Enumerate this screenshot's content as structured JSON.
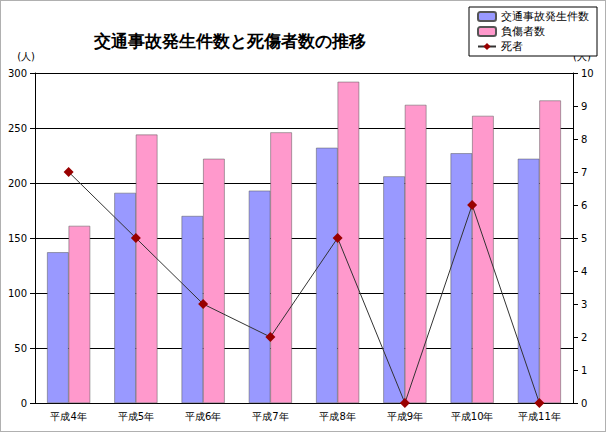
{
  "chart_data": {
    "type": "bar",
    "title": "交通事故発生件数と死傷者数の推移",
    "categories": [
      "平成4年",
      "平成5年",
      "平成6年",
      "平成7年",
      "平成8年",
      "平成9年",
      "平成10年",
      "平成11年"
    ],
    "series": [
      {
        "name": "交通事故発生件数",
        "type": "bar",
        "color": "#9999ff",
        "values": [
          137,
          191,
          170,
          193,
          232,
          206,
          227,
          222
        ]
      },
      {
        "name": "負傷者数",
        "type": "bar",
        "color": "#ff99cc",
        "values": [
          161,
          244,
          222,
          246,
          292,
          271,
          261,
          275
        ]
      },
      {
        "name": "死者",
        "type": "line",
        "axis": "y2",
        "color": "#990000",
        "marker": "diamond",
        "values": [
          7,
          5,
          3,
          2,
          5,
          0,
          6,
          0
        ]
      }
    ],
    "ylabel": "(人)",
    "y2label": "(人)",
    "ylim": [
      0,
      300
    ],
    "yticks": [
      0,
      50,
      100,
      150,
      200,
      250,
      300
    ],
    "y2lim": [
      0,
      10
    ],
    "y2ticks": [
      0,
      1,
      2,
      3,
      4,
      5,
      6,
      7,
      8,
      9,
      10
    ],
    "grid": true,
    "legend": "upper right"
  }
}
